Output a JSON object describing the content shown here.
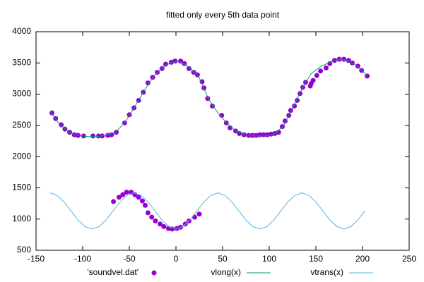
{
  "chart_data": {
    "type": "scatter",
    "title": "fitted only every 5th data point",
    "xlim": [
      -150,
      250
    ],
    "xticks": [
      -150,
      -100,
      -50,
      0,
      50,
      100,
      150,
      200,
      250
    ],
    "ylim": [
      500,
      4000
    ],
    "yticks": [
      500,
      1000,
      1500,
      2000,
      2500,
      3000,
      3500,
      4000
    ],
    "grid": false,
    "legend": "bottom",
    "series": [
      {
        "name": "'soundvel.dat'",
        "color": "#9400d3",
        "style": "points",
        "x": [
          -133,
          -129,
          -123,
          -119,
          -114,
          -109,
          -105,
          -99,
          -89,
          -83,
          -79,
          -73,
          -69,
          -64,
          -55,
          -50,
          -45,
          -40,
          -35,
          -30,
          -25,
          -20,
          -15,
          -11,
          -5,
          -1,
          5,
          9,
          14,
          19,
          23,
          28,
          30,
          34,
          39,
          49,
          54,
          58,
          64,
          68,
          73,
          78,
          82,
          86,
          90,
          94,
          98,
          102,
          106,
          110,
          114,
          117,
          121,
          123,
          127,
          130,
          133,
          136,
          139,
          144,
          145,
          147,
          151,
          155,
          161,
          165,
          170,
          175,
          180,
          185,
          189,
          195,
          199,
          205,
          -67,
          -61,
          -57,
          -53,
          -48,
          -44,
          -40,
          -36,
          -33,
          -30,
          -26,
          -22,
          -17,
          -13,
          -8,
          -4,
          1,
          5,
          10,
          14,
          20,
          25
        ],
        "values": [
          2700,
          2610,
          2510,
          2440,
          2390,
          2350,
          2340,
          2330,
          2330,
          2330,
          2330,
          2340,
          2350,
          2390,
          2540,
          2670,
          2780,
          2900,
          3030,
          3180,
          3270,
          3350,
          3410,
          3480,
          3510,
          3530,
          3530,
          3490,
          3410,
          3350,
          3310,
          3200,
          3100,
          2930,
          2810,
          2660,
          2540,
          2460,
          2410,
          2370,
          2350,
          2340,
          2340,
          2340,
          2350,
          2350,
          2350,
          2360,
          2370,
          2390,
          2480,
          2570,
          2660,
          2740,
          2810,
          2900,
          3010,
          3110,
          3190,
          3130,
          3170,
          3220,
          3300,
          3370,
          3420,
          3490,
          3540,
          3560,
          3560,
          3540,
          3500,
          3450,
          3380,
          3290,
          1280,
          1350,
          1390,
          1430,
          1430,
          1390,
          1350,
          1290,
          1220,
          1100,
          1030,
          970,
          920,
          880,
          850,
          840,
          850,
          870,
          920,
          970,
          1030,
          1080
        ]
      },
      {
        "name": "vlong(x)",
        "color": "#009e73",
        "style": "line",
        "x": [
          -135,
          -125,
          -115,
          -105,
          -95,
          -85,
          -75,
          -65,
          -55,
          -45,
          -35,
          -25,
          -15,
          -5,
          5,
          15,
          25,
          35,
          45,
          55,
          65,
          75,
          85,
          95,
          105,
          115,
          125,
          135,
          145,
          155,
          165,
          175,
          185,
          195,
          205
        ],
        "values": [
          2730,
          2520,
          2390,
          2340,
          2320,
          2320,
          2340,
          2390,
          2540,
          2780,
          3030,
          3270,
          3420,
          3510,
          3520,
          3420,
          3260,
          2920,
          2700,
          2530,
          2400,
          2350,
          2330,
          2330,
          2360,
          2480,
          2780,
          3080,
          3330,
          3440,
          3510,
          3560,
          3540,
          3440,
          3300
        ]
      },
      {
        "name": "vtrans(x)",
        "color": "#56b4e9",
        "style": "line",
        "x": [
          -135,
          -127.5,
          -120,
          -112.5,
          -105,
          -97.5,
          -90,
          -82.5,
          -75,
          -67.5,
          -60,
          -52.5,
          -45,
          -37.5,
          -30,
          -22.5,
          -15,
          -7.5,
          0,
          7.5,
          15,
          22.5,
          30,
          37.5,
          45,
          52.5,
          60,
          67.5,
          75,
          82.5,
          90,
          97.5,
          105,
          112.5,
          120,
          127.5,
          135,
          142.5,
          150,
          157.5,
          165,
          172.5,
          180,
          187.5,
          195,
          202.5
        ],
        "values": [
          1420,
          1381,
          1275,
          1130,
          985,
          879,
          840,
          879,
          985,
          1130,
          1275,
          1381,
          1420,
          1381,
          1275,
          1130,
          985,
          879,
          840,
          879,
          985,
          1130,
          1275,
          1381,
          1420,
          1381,
          1275,
          1130,
          985,
          879,
          840,
          879,
          985,
          1130,
          1275,
          1381,
          1420,
          1381,
          1275,
          1130,
          985,
          879,
          840,
          879,
          985,
          1130
        ]
      }
    ]
  }
}
